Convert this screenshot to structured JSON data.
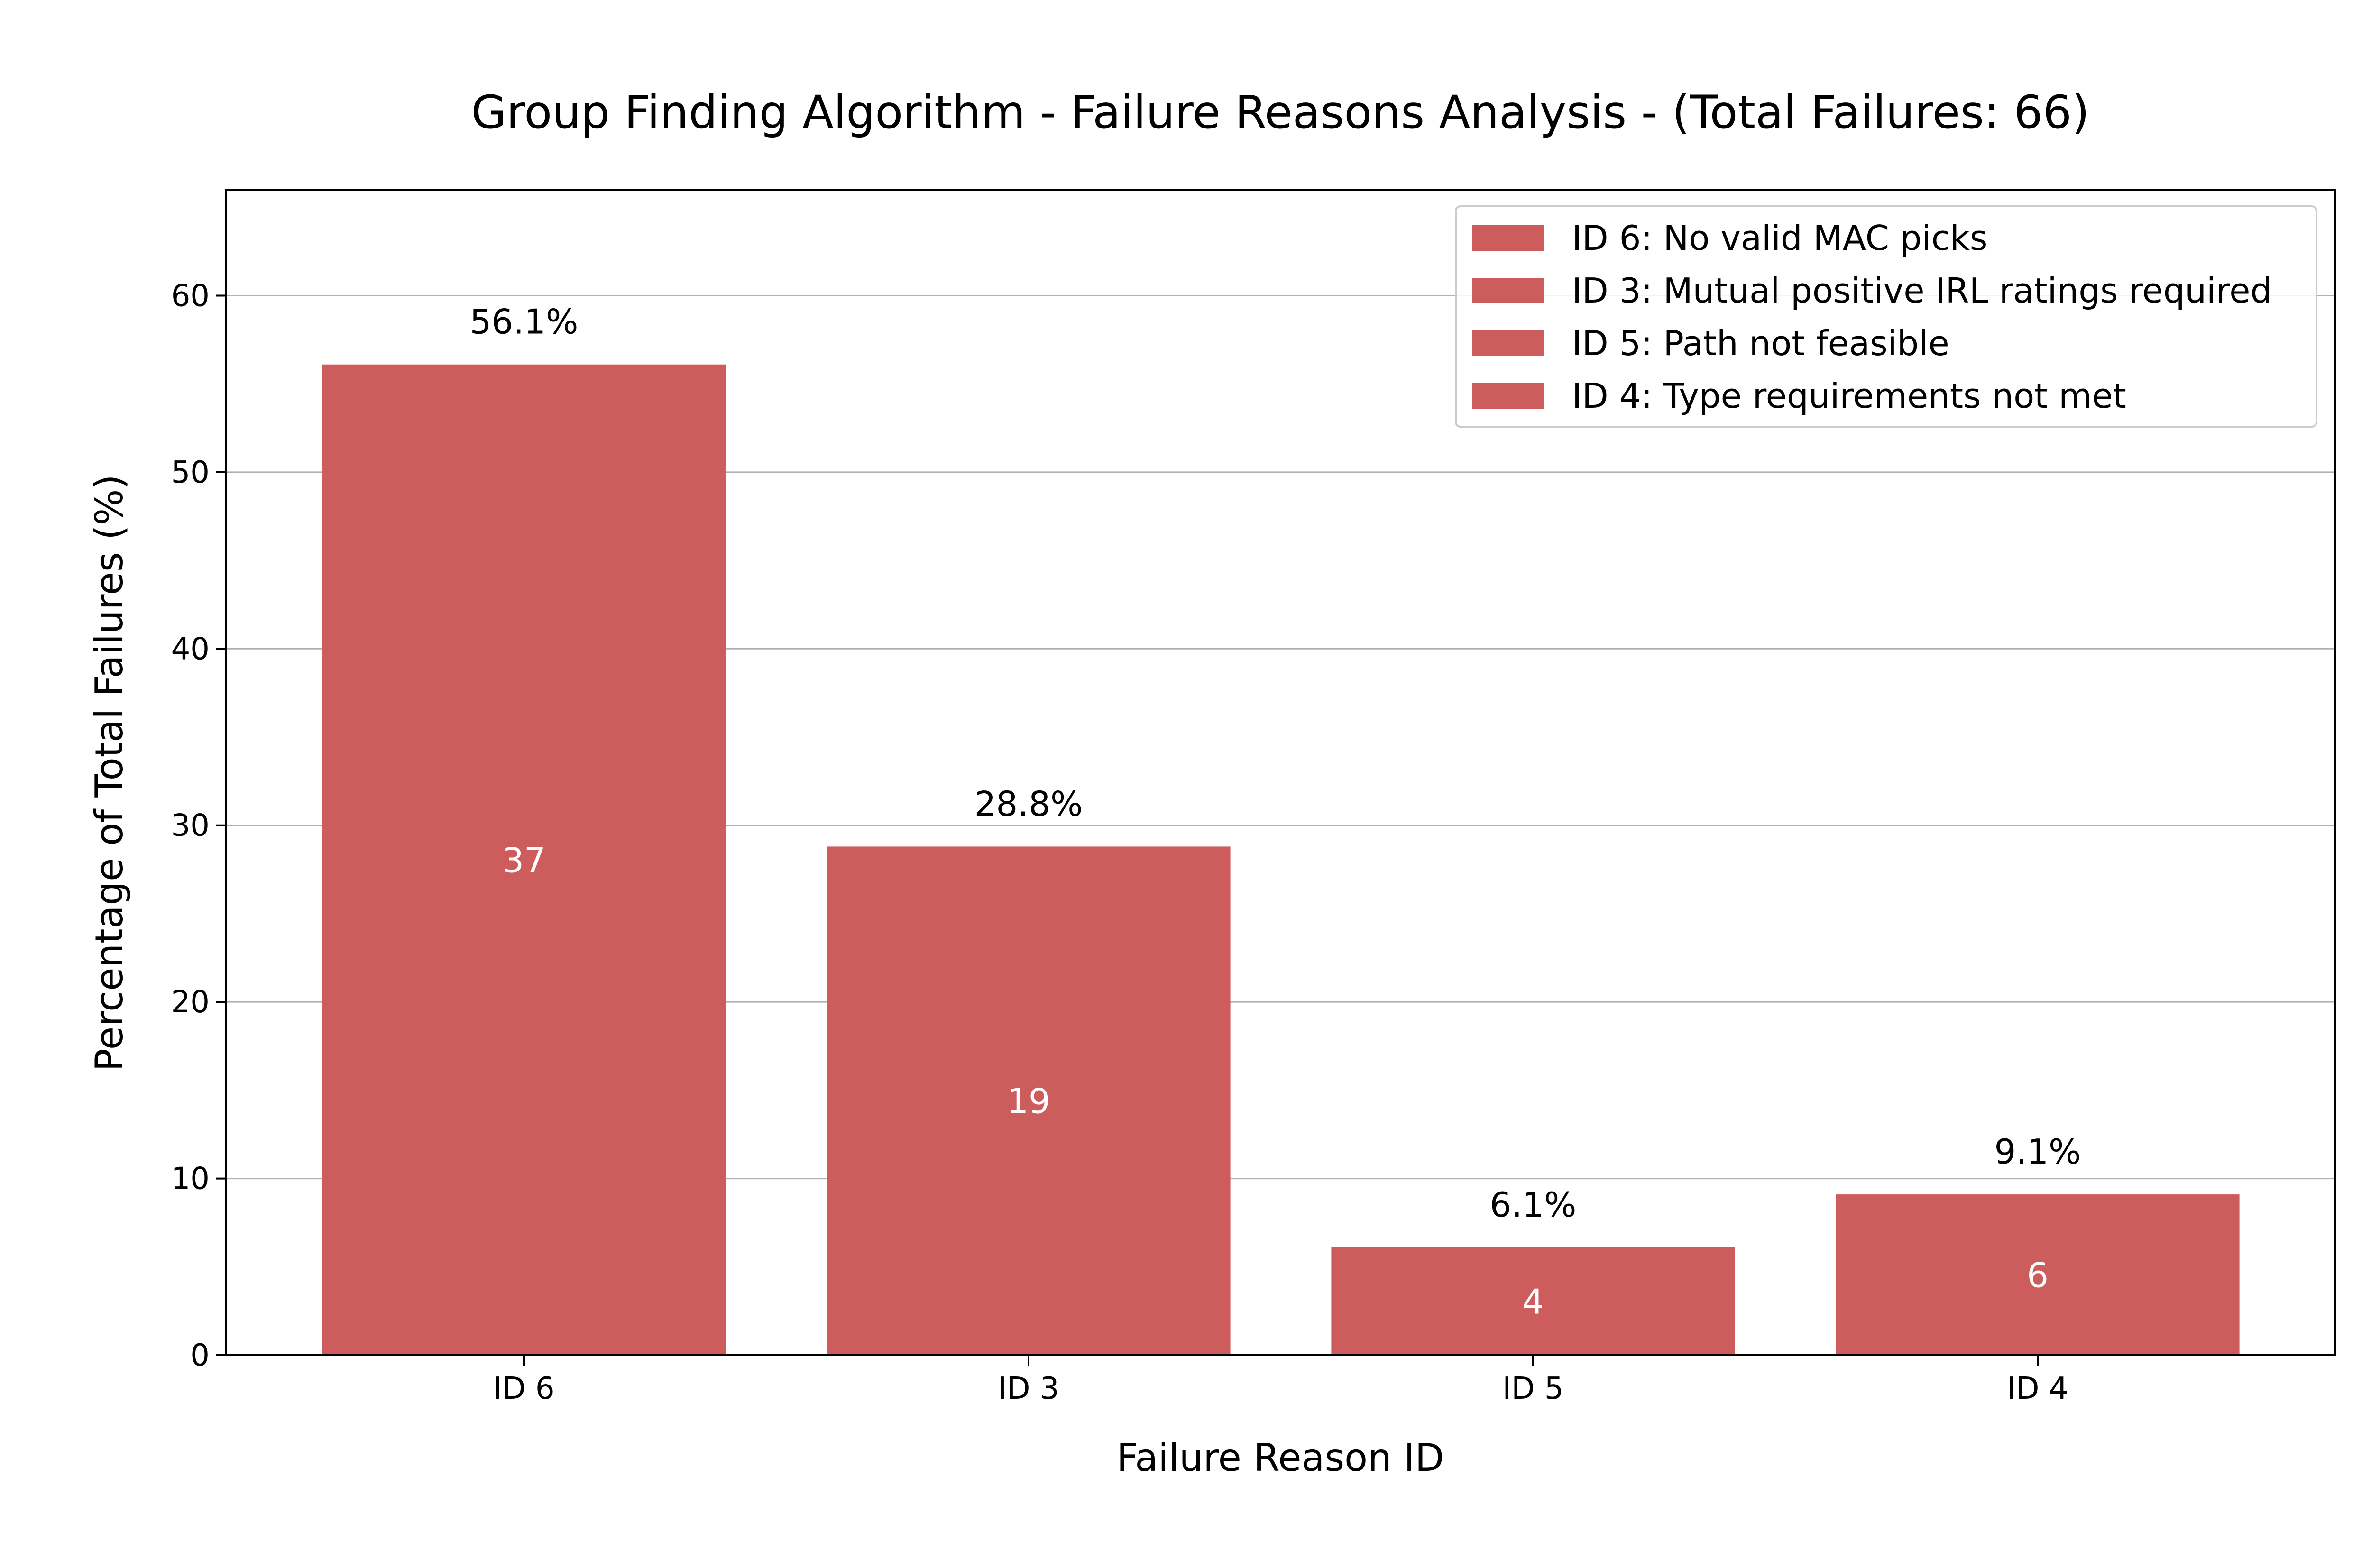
{
  "chart_data": {
    "type": "bar",
    "title": "Group Finding Algorithm - Failure Reasons Analysis - (Total Failures: 66)",
    "xlabel": "Failure Reason ID",
    "ylabel": "Percentage of Total Failures (%)",
    "categories": [
      "ID 6",
      "ID 3",
      "ID 5",
      "ID 4"
    ],
    "values": [
      56.1,
      28.8,
      6.1,
      9.1
    ],
    "value_labels": [
      "56.1%",
      "28.8%",
      "6.1%",
      "9.1%"
    ],
    "counts": [
      "37",
      "19",
      "4",
      "6"
    ],
    "ylim": [
      0,
      66
    ],
    "yticks": [
      0,
      10,
      20,
      30,
      40,
      50,
      60
    ],
    "grid": "horizontal",
    "bar_color": "#cd5c5c",
    "legend": {
      "placement": "top-right",
      "entries": [
        "ID 6: No valid MAC picks",
        "ID 3: Mutual positive IRL ratings required",
        "ID 5: Path not feasible",
        "ID 4: Type requirements not met"
      ]
    }
  }
}
